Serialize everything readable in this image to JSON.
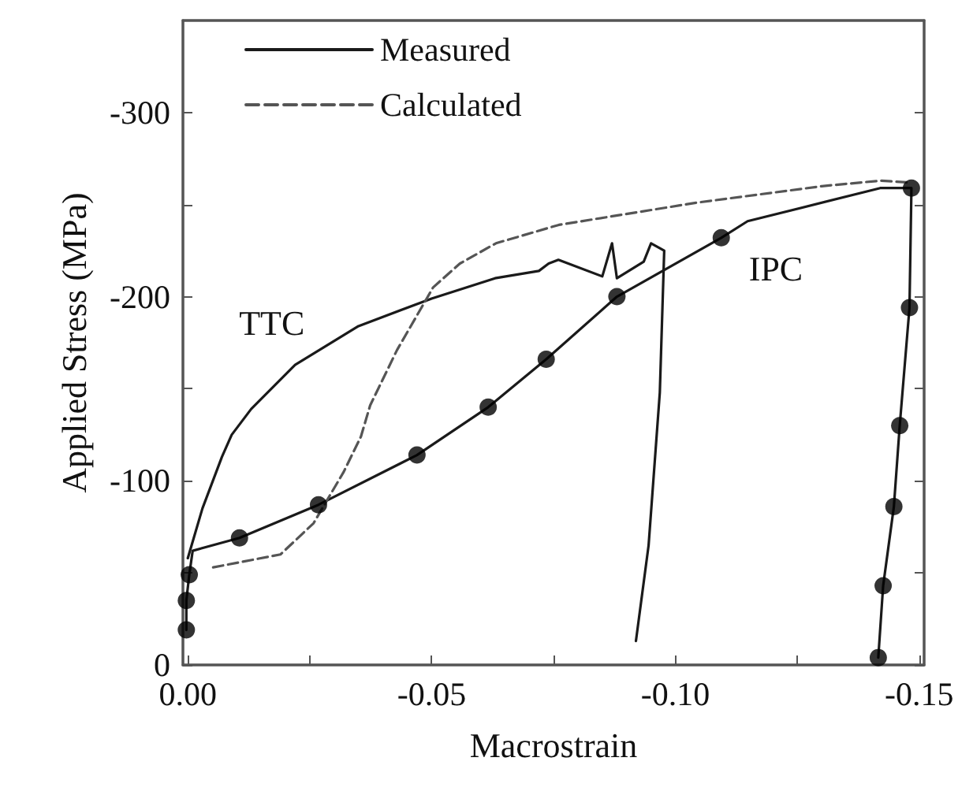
{
  "chart_data": {
    "type": "line",
    "xlabel": "Macrostrain",
    "ylabel": "Applied Stress (MPa)",
    "xlim": [
      0.001,
      -0.151
    ],
    "ylim": [
      0,
      -350
    ],
    "xticks": [
      {
        "value": 0,
        "label": "0.00"
      },
      {
        "value": -0.025,
        "label": null
      },
      -0.05,
      {
        "value": -0.075,
        "label": null
      },
      {
        "value": -0.1,
        "label": "-0.10"
      },
      {
        "value": -0.125,
        "label": null
      },
      -0.15
    ],
    "yticks": [
      0,
      {
        "value": -50,
        "label": null
      },
      -100,
      {
        "value": -150,
        "label": null
      },
      -200,
      {
        "value": -250,
        "label": null
      },
      -300
    ],
    "grid": false,
    "legend": "top left",
    "series": [
      {
        "name": "Measured",
        "color": "#1a1a1a",
        "line_style": "solid",
        "marker": "none",
        "x": [
          0,
          -0.003,
          -0.007,
          -0.009,
          -0.013,
          -0.022,
          -0.035,
          -0.05,
          -0.063,
          -0.072,
          -0.074,
          -0.076,
          -0.085,
          -0.087,
          -0.088,
          -0.0935,
          -0.095,
          -0.0977,
          -0.0968,
          -0.0945,
          -0.0919
        ],
        "values": [
          -58,
          -85,
          -113,
          -125,
          -139,
          -163,
          -184,
          -199,
          -210,
          -214,
          -218,
          -220,
          -211,
          -229,
          -210,
          -219,
          -229,
          -225,
          -148,
          -65,
          -13
        ]
      },
      {
        "color": "#1a1a1a",
        "line_style": "solid",
        "marker": "none",
        "x": [
          0.0003,
          0.0003,
          -0.0003,
          -0.001,
          -0.0106,
          -0.0268,
          -0.047,
          -0.0616,
          -0.0735,
          -0.088,
          -0.1094,
          -0.1148,
          -0.142,
          -0.1484,
          -0.148,
          -0.146,
          -0.1448,
          -0.1426,
          -0.1416
        ],
        "values": [
          -19,
          -35,
          -49,
          -62,
          -69,
          -87,
          -114,
          -140,
          -166,
          -200,
          -232,
          -241,
          -259,
          -259,
          -194,
          -130,
          -86,
          -43,
          -4
        ]
      },
      {
        "type": "scatter",
        "color": "#000000",
        "marker": "circle",
        "x": [
          0.0003,
          0.0003,
          -0.0003,
          -0.0106,
          -0.0268,
          -0.047,
          -0.0616,
          -0.0735,
          -0.088,
          -0.1094,
          -0.1484,
          -0.148,
          -0.146,
          -0.1448,
          -0.1426,
          -0.1416
        ],
        "values": [
          -19,
          -35,
          -49,
          -69,
          -87,
          -114,
          -140,
          -166,
          -200,
          -232,
          -259,
          -194,
          -130,
          -86,
          -43,
          -4
        ]
      },
      {
        "name": "Calculated",
        "color": "#555555",
        "line_style": "dashed",
        "marker": "none",
        "x": [
          -0.0052,
          -0.019,
          -0.0258,
          -0.032,
          -0.0355,
          -0.0374,
          -0.0429,
          -0.0503,
          -0.0558,
          -0.0632,
          -0.0761,
          -0.1042,
          -0.13,
          -0.142,
          -0.1484
        ],
        "values": [
          -53,
          -60,
          -77,
          -105,
          -124,
          -141,
          -171,
          -205,
          -218,
          -229,
          -239,
          -251,
          -260,
          -263,
          -262
        ]
      }
    ],
    "annotations": [
      "TTC",
      "IPC"
    ]
  }
}
